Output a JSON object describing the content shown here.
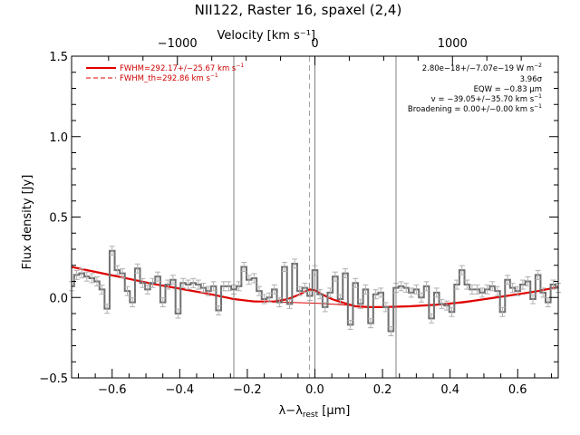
{
  "chart_data": {
    "type": "line",
    "title": "NII122, Raster 16, spaxel (2,4)",
    "xlabel_main": "λ−λ",
    "xlabel_sub": "rest",
    "xlabel_unit": " [μm]",
    "ylabel": "Flux density [Jy]",
    "top_axis_label": "Velocity [km s⁻¹]",
    "xlim": [
      -0.72,
      0.72
    ],
    "ylim": [
      -0.5,
      1.5
    ],
    "x_ticks": [
      -0.6,
      -0.4,
      -0.2,
      0.0,
      0.2,
      0.4,
      0.6
    ],
    "x_tick_labels": [
      "−0.6",
      "−0.4",
      "−0.2",
      "0.0",
      "0.2",
      "0.4",
      "0.6"
    ],
    "y_ticks": [
      -0.5,
      0.0,
      0.5,
      1.0,
      1.5
    ],
    "y_tick_labels": [
      "−0.5",
      "0.0",
      "0.5",
      "1.0",
      "1.5"
    ],
    "top_ticks_velocity": [
      -1000,
      0,
      1000
    ],
    "top_tick_labels": [
      "−1000",
      "0",
      "1000"
    ],
    "velocity_per_micron": 2457,
    "grid": false,
    "vertical_lines": [
      -0.24,
      0.0,
      0.24
    ],
    "dashed_line_x": -0.016,
    "legend": {
      "position": "top-left",
      "entries": [
        {
          "label": "FWHM=292.17+/−25.67 km s",
          "sup": "−1",
          "style": "solid"
        },
        {
          "label": "FWHM_th=292.86 km s",
          "sup": "−1",
          "style": "dashed"
        }
      ]
    },
    "annotations": [
      {
        "text": "2.80e−18+/−7.07e−19 W m",
        "sup": "−2"
      },
      {
        "text": "3.96σ",
        "sup": ""
      },
      {
        "text": "EQW = −0.83 μm",
        "sup": ""
      },
      {
        "text": "v = −39.05+/−35.70 km s",
        "sup": "−1"
      },
      {
        "text": "Broadening = 0.00+/−0.00 km s",
        "sup": "−1"
      }
    ],
    "colors": {
      "data": "#707070",
      "errorbar": "#b0b0b0",
      "fit": "#e00000",
      "vline": "#808080"
    },
    "series": [
      {
        "name": "spectrum",
        "x": [
          -0.72,
          -0.705,
          -0.69,
          -0.675,
          -0.66,
          -0.645,
          -0.63,
          -0.615,
          -0.6,
          -0.585,
          -0.57,
          -0.555,
          -0.54,
          -0.525,
          -0.51,
          -0.495,
          -0.48,
          -0.465,
          -0.45,
          -0.435,
          -0.42,
          -0.405,
          -0.39,
          -0.375,
          -0.36,
          -0.345,
          -0.33,
          -0.315,
          -0.3,
          -0.285,
          -0.27,
          -0.255,
          -0.24,
          -0.225,
          -0.21,
          -0.195,
          -0.18,
          -0.165,
          -0.15,
          -0.135,
          -0.12,
          -0.105,
          -0.09,
          -0.075,
          -0.06,
          -0.045,
          -0.03,
          -0.015,
          0.0,
          0.015,
          0.03,
          0.045,
          0.06,
          0.075,
          0.09,
          0.105,
          0.12,
          0.135,
          0.15,
          0.165,
          0.18,
          0.195,
          0.21,
          0.225,
          0.24,
          0.255,
          0.27,
          0.285,
          0.3,
          0.315,
          0.33,
          0.345,
          0.36,
          0.375,
          0.39,
          0.405,
          0.42,
          0.435,
          0.45,
          0.465,
          0.48,
          0.495,
          0.51,
          0.525,
          0.54,
          0.555,
          0.57,
          0.585,
          0.6,
          0.615,
          0.63,
          0.645,
          0.66,
          0.675,
          0.69,
          0.705,
          0.72
        ],
        "values": [
          0.07,
          0.14,
          0.15,
          0.13,
          0.12,
          0.1,
          0.05,
          -0.07,
          0.29,
          0.17,
          0.15,
          0.04,
          -0.03,
          0.18,
          0.09,
          0.05,
          0.09,
          0.13,
          -0.03,
          0.08,
          0.11,
          -0.1,
          0.09,
          0.08,
          0.09,
          0.08,
          0.06,
          0.04,
          0.07,
          -0.08,
          0.07,
          0.07,
          0.05,
          0.07,
          0.19,
          0.11,
          0.12,
          0.04,
          -0.01,
          0.0,
          0.05,
          -0.03,
          0.19,
          -0.04,
          0.21,
          0.04,
          0.06,
          0.01,
          0.17,
          0.02,
          -0.06,
          0.03,
          0.13,
          -0.01,
          0.15,
          -0.17,
          0.09,
          -0.04,
          0.05,
          -0.16,
          0.02,
          0.03,
          -0.06,
          -0.21,
          0.06,
          0.07,
          0.06,
          0.03,
          0.05,
          0.0,
          0.07,
          -0.13,
          0.03,
          -0.04,
          -0.05,
          -0.09,
          0.08,
          0.17,
          0.08,
          0.05,
          0.05,
          0.03,
          0.05,
          0.07,
          0.04,
          -0.09,
          0.11,
          0.06,
          0.04,
          0.08,
          0.1,
          -0.01,
          0.14,
          0.03,
          -0.03,
          0.08,
          0.06
        ]
      },
      {
        "name": "fit",
        "x": [
          -0.72,
          -0.64,
          -0.56,
          -0.48,
          -0.4,
          -0.32,
          -0.24,
          -0.18,
          -0.12,
          -0.08,
          -0.05,
          -0.03,
          -0.016,
          0.0,
          0.02,
          0.05,
          0.08,
          0.12,
          0.16,
          0.2,
          0.28,
          0.36,
          0.44,
          0.52,
          0.6,
          0.66,
          0.72
        ],
        "values": [
          0.19,
          0.155,
          0.12,
          0.085,
          0.055,
          0.025,
          -0.01,
          -0.025,
          -0.025,
          -0.01,
          0.015,
          0.035,
          0.05,
          0.045,
          0.02,
          -0.01,
          -0.03,
          -0.055,
          -0.06,
          -0.06,
          -0.055,
          -0.045,
          -0.03,
          -0.005,
          0.02,
          0.04,
          0.065
        ]
      },
      {
        "name": "baseline",
        "x": [
          -0.72,
          -0.64,
          -0.56,
          -0.48,
          -0.4,
          -0.32,
          -0.24,
          -0.16,
          -0.08,
          0.0,
          0.08,
          0.16,
          0.24,
          0.32,
          0.4,
          0.48,
          0.56,
          0.64,
          0.72
        ],
        "values": [
          0.19,
          0.155,
          0.12,
          0.085,
          0.055,
          0.025,
          -0.01,
          -0.025,
          -0.03,
          -0.035,
          -0.045,
          -0.06,
          -0.06,
          -0.05,
          -0.035,
          -0.015,
          0.005,
          0.03,
          0.065
        ]
      }
    ]
  }
}
